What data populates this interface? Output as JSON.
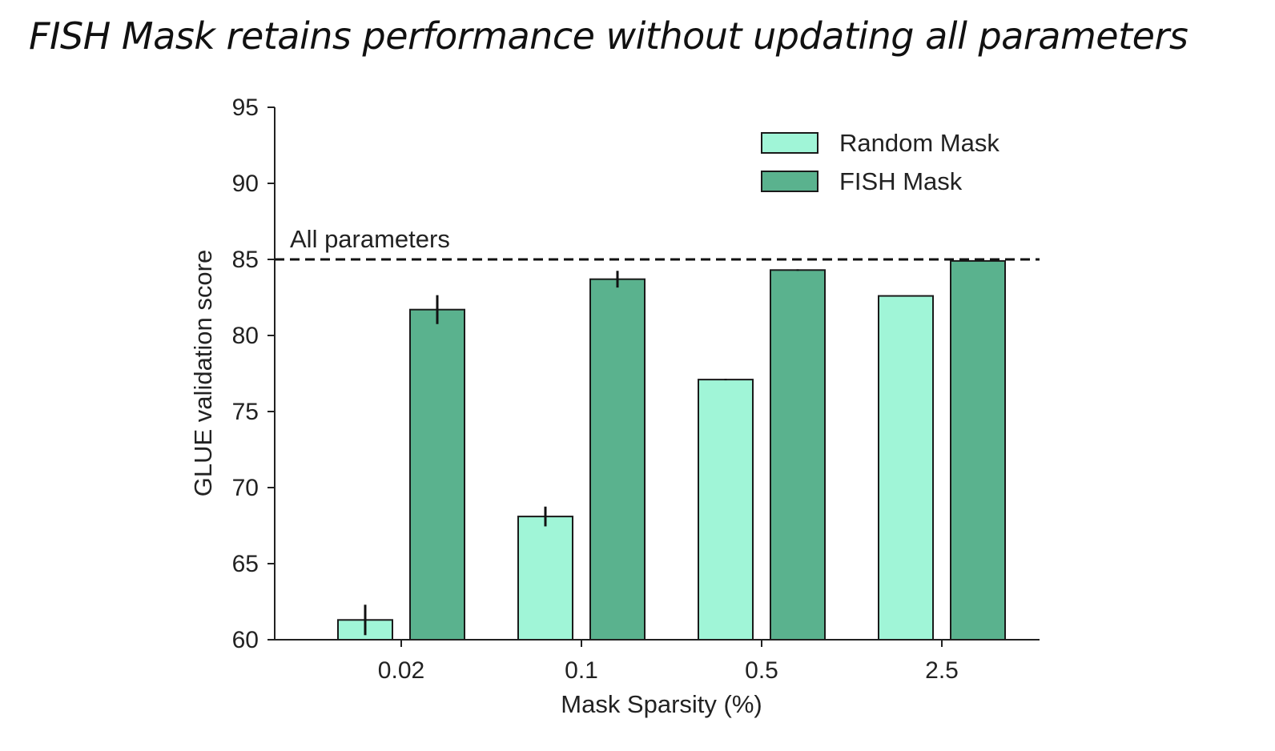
{
  "slide": {
    "title": "FISH Mask retains performance without updating all parameters"
  },
  "colors": {
    "random": "#a0f5d7",
    "fish": "#5ab28e",
    "edge": "#1a1a1a"
  },
  "chart_data": {
    "type": "bar",
    "title": "",
    "xlabel": "Mask Sparsity (%)",
    "ylabel": "GLUE validation score",
    "categories": [
      "0.02",
      "0.1",
      "0.5",
      "2.5"
    ],
    "ylim": [
      60,
      95
    ],
    "yticks": [
      60,
      65,
      70,
      75,
      80,
      85,
      90,
      95
    ],
    "series": [
      {
        "name": "Random Mask",
        "values": [
          61.3,
          68.1,
          77.1,
          82.6
        ],
        "errors": [
          1.0,
          0.65,
          0.05,
          0
        ]
      },
      {
        "name": "FISH Mask",
        "values": [
          81.7,
          83.7,
          84.3,
          84.9
        ],
        "errors": [
          0.95,
          0.55,
          0.05,
          0
        ]
      }
    ],
    "reference_line": {
      "label": "All parameters",
      "value": 85,
      "style": "dashed"
    },
    "legend_position": "top-right",
    "grid": false
  }
}
